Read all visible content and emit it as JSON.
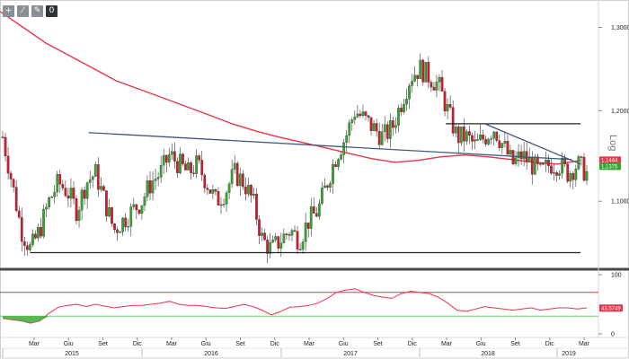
{
  "toolbar": {
    "buttons": [
      {
        "icon": "zoom-in-icon",
        "glyph": "+"
      },
      {
        "icon": "draw-line-icon",
        "glyph": "⁄"
      },
      {
        "icon": "eraser-icon",
        "glyph": "✎"
      },
      {
        "icon": "zero-icon",
        "glyph": "0"
      }
    ]
  },
  "chart_data": [
    {
      "type": "candlestick",
      "scale_label": "Log",
      "log_scale": true,
      "ylim": [
        1.034,
        1.33
      ],
      "y_ticks": [
        {
          "value": 1.3,
          "label": "1,3000"
        },
        {
          "value": 1.2,
          "label": "1,2000"
        },
        {
          "value": 1.1,
          "label": "1,1000"
        }
      ],
      "price_labels": [
        {
          "value": 1.1444,
          "label": "1,1444",
          "color": "#e8354a"
        },
        {
          "value": 1.1375,
          "label": "1,1375",
          "color": "#35a52f"
        }
      ],
      "x_months": [
        "Mar",
        "Giu",
        "Set",
        "Dic",
        "Mar",
        "Giu",
        "Set",
        "Dic",
        "Mar",
        "Giu",
        "Set",
        "Dic",
        "Mar",
        "Giu",
        "Set",
        "Dic",
        "Mar"
      ],
      "x_years": [
        "2015",
        "2016",
        "2017",
        "2018",
        "2019"
      ],
      "colors": {
        "up": "#35a52f",
        "down": "#d11a2a",
        "ma": "#e8354a",
        "trend": "#3c5a7a",
        "support": "#222222"
      },
      "close_path": [
        1.17,
        1.12,
        1.07,
        1.05,
        1.07,
        1.1,
        1.12,
        1.11,
        1.09,
        1.12,
        1.13,
        1.1,
        1.07,
        1.08,
        1.09,
        1.1,
        1.12,
        1.13,
        1.15,
        1.14,
        1.13,
        1.14,
        1.12,
        1.1,
        1.11,
        1.13,
        1.12,
        1.1,
        1.06,
        1.05,
        1.06,
        1.07,
        1.06,
        1.08,
        1.09,
        1.12,
        1.15,
        1.17,
        1.2,
        1.19,
        1.18,
        1.17,
        1.18,
        1.21,
        1.24,
        1.25,
        1.24,
        1.23,
        1.2,
        1.17,
        1.17,
        1.16,
        1.17,
        1.18,
        1.16,
        1.14,
        1.15,
        1.14,
        1.13,
        1.14,
        1.14,
        1.13,
        1.14,
        1.13
      ],
      "ma_path": [
        1.32,
        1.3,
        1.28,
        1.265,
        1.25,
        1.235,
        1.225,
        1.215,
        1.205,
        1.195,
        1.185,
        1.177,
        1.17,
        1.164,
        1.158,
        1.152,
        1.146,
        1.142,
        1.144,
        1.148,
        1.15,
        1.148,
        1.145,
        1.142,
        1.14,
        1.144
      ],
      "trendlines": [
        {
          "name": "descending-trendline",
          "points": [
            [
              0.148,
              1.175
            ],
            [
              0.955,
              1.145
            ]
          ]
        },
        {
          "name": "recent-resistance-line",
          "points": [
            [
              0.81,
              1.185
            ],
            [
              0.97,
              1.14
            ]
          ]
        }
      ],
      "horizontals": [
        {
          "name": "support-line",
          "value": 1.047,
          "range": [
            0.05,
            0.97
          ]
        },
        {
          "name": "resistance-line",
          "value": 1.185,
          "range": [
            0.745,
            0.97
          ]
        }
      ]
    },
    {
      "type": "line",
      "ylim": [
        0,
        100
      ],
      "y_ticks": [
        {
          "value": 100,
          "label": "100"
        },
        {
          "value": 0,
          "label": "0"
        }
      ],
      "levels": [
        {
          "value": 70,
          "color": "#e8354a"
        },
        {
          "value": 30,
          "color": "#6fd36b"
        }
      ],
      "value_label": "43,5749",
      "values": [
        26,
        24,
        22,
        18,
        22,
        35,
        45,
        48,
        50,
        46,
        50,
        47,
        44,
        46,
        48,
        48,
        50,
        52,
        55,
        50,
        48,
        48,
        46,
        44,
        43,
        46,
        50,
        46,
        40,
        32,
        38,
        45,
        46,
        48,
        52,
        60,
        70,
        74,
        76,
        70,
        65,
        62,
        60,
        68,
        72,
        70,
        68,
        62,
        52,
        40,
        38,
        42,
        46,
        44,
        42,
        40,
        42,
        44,
        40,
        42,
        44,
        44,
        42,
        44
      ]
    }
  ]
}
